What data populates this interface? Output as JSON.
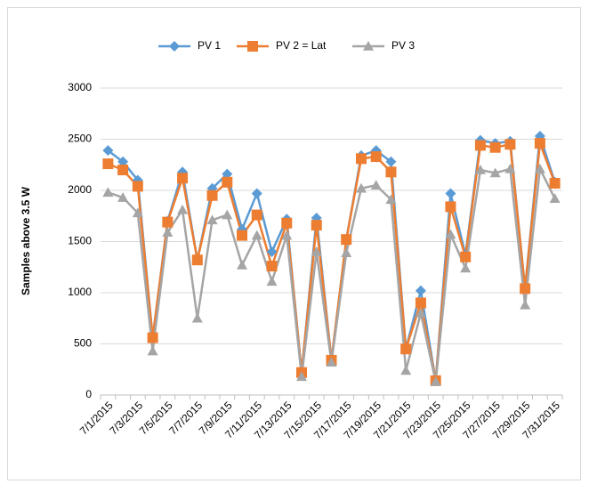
{
  "chart_data": {
    "type": "line",
    "y_label": "Samples above 3.5 W",
    "categories": [
      "7/1/2015",
      null,
      "7/3/2015",
      null,
      "7/5/2015",
      null,
      "7/7/2015",
      null,
      "7/9/2015",
      null,
      "7/11/2015",
      null,
      "7/13/2015",
      null,
      "7/15/2015",
      null,
      "7/17/2015",
      null,
      "7/19/2015",
      null,
      "7/21/2015",
      null,
      "7/23/2015",
      null,
      "7/25/2015",
      null,
      "7/27/2015",
      null,
      "7/29/2015",
      null,
      "7/31/2015"
    ],
    "series": [
      {
        "name": "PV 1",
        "color": "#5b9bd5",
        "marker": "diamond",
        "values": [
          2390,
          2280,
          2100,
          560,
          1700,
          2180,
          1320,
          2020,
          2160,
          1620,
          1970,
          1400,
          1720,
          220,
          1730,
          340,
          1520,
          2340,
          2390,
          2280,
          450,
          1020,
          140,
          1970,
          1370,
          2490,
          2460,
          2480,
          1040,
          2530,
          2080
        ]
      },
      {
        "name": "PV 2 = Lat",
        "color": "#ed7d31",
        "marker": "square",
        "values": [
          2260,
          2200,
          2040,
          560,
          1690,
          2120,
          1320,
          1950,
          2080,
          1560,
          1760,
          1260,
          1680,
          220,
          1660,
          340,
          1520,
          2310,
          2330,
          2180,
          450,
          900,
          140,
          1840,
          1350,
          2440,
          2420,
          2450,
          1040,
          2460,
          2070
        ]
      },
      {
        "name": "PV 3",
        "color": "#a5a5a5",
        "marker": "triangle",
        "values": [
          1980,
          1930,
          1780,
          430,
          1590,
          1810,
          750,
          1710,
          1760,
          1270,
          1560,
          1110,
          1560,
          180,
          1400,
          320,
          1390,
          2020,
          2050,
          1910,
          240,
          800,
          130,
          1570,
          1240,
          2200,
          2170,
          2210,
          880,
          2210,
          1920
        ]
      }
    ],
    "ylim": [
      0,
      3000
    ],
    "yticks": [
      0,
      500,
      1000,
      1500,
      2000,
      2500,
      3000
    ],
    "grid": true,
    "legend": "top"
  }
}
